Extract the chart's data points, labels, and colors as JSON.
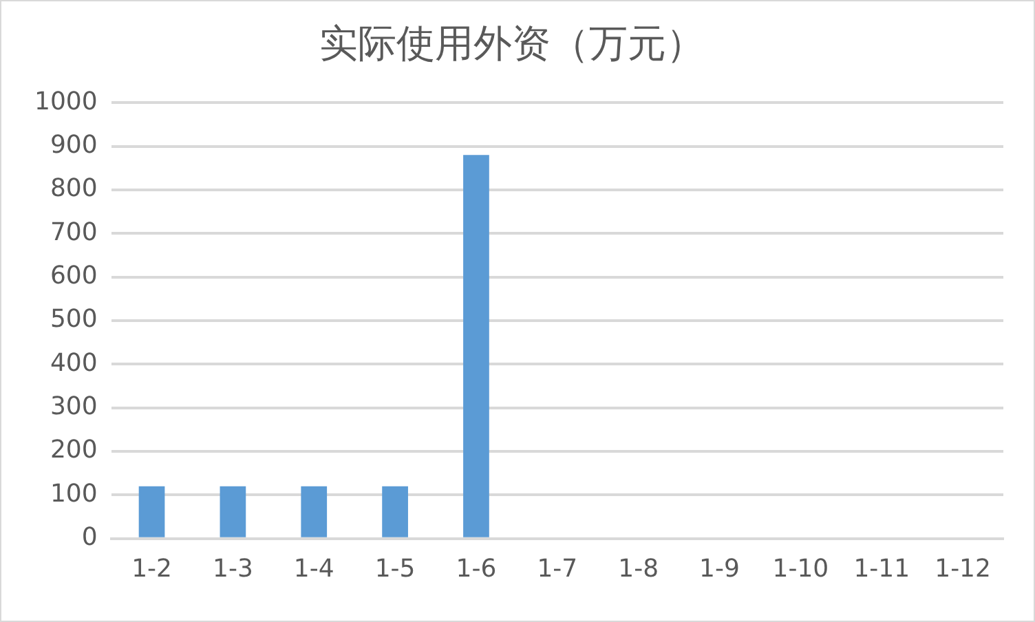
{
  "chart_data": {
    "type": "bar",
    "title": "实际使用外资（万元）",
    "categories": [
      "1-2",
      "1-3",
      "1-4",
      "1-5",
      "1-6",
      "1-7",
      "1-8",
      "1-9",
      "1-10",
      "1-11",
      "1-12"
    ],
    "values": [
      120,
      120,
      120,
      120,
      880,
      0,
      0,
      0,
      0,
      0,
      0
    ],
    "color": "#5b9bd5",
    "ylim": [
      0,
      1000
    ],
    "yticks": [
      0,
      100,
      200,
      300,
      400,
      500,
      600,
      700,
      800,
      900,
      1000
    ],
    "grid": "y"
  }
}
